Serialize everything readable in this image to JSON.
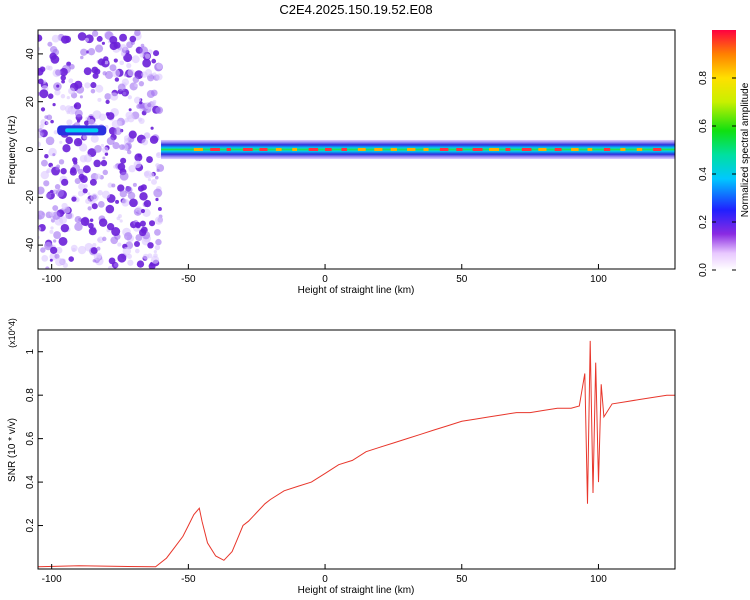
{
  "title": "C2E4.2025.150.19.52.E08",
  "colors": {
    "snr_line": "#e8362b",
    "scatter_purple": "#7b2fe0"
  },
  "chart_data": [
    {
      "type": "heatmap",
      "title": "C2E4.2025.150.19.52.E08",
      "xlabel": "Height of straight line (km)",
      "ylabel": "Frequency (Hz)",
      "xlim": [
        -105,
        128
      ],
      "ylim": [
        -50,
        50
      ],
      "xticks": [
        -100,
        -50,
        0,
        50,
        100
      ],
      "yticks": [
        -40,
        -20,
        0,
        20,
        40
      ],
      "colorbar": {
        "label": "Normalized spectral amplitude",
        "ticks": [
          "0.0",
          "0.2",
          "0.4",
          "0.6",
          "0.8"
        ],
        "range": [
          0,
          1
        ]
      },
      "features": {
        "noise_region_x": [
          -105,
          -60
        ],
        "band_start_x": -60,
        "band_center_hz": 0,
        "band_halfwidth_hz": 4,
        "early_blob": {
          "x": [
            -98,
            -80
          ],
          "hz": 8
        }
      }
    },
    {
      "type": "line",
      "xlabel": "Height of straight line (km)",
      "ylabel": "SNR (10 * v/v)",
      "y_multiplier": "(x10^4)",
      "xlim": [
        -105,
        128
      ],
      "ylim": [
        0,
        1.1
      ],
      "xticks": [
        -100,
        -50,
        0,
        50,
        100
      ],
      "yticks": [
        0.2,
        0.4,
        0.6,
        0.8,
        1.0
      ],
      "series": [
        {
          "color": "#e8362b",
          "x": [
            -105,
            -90,
            -75,
            -62,
            -58,
            -55,
            -52,
            -50,
            -48,
            -46,
            -45,
            -43,
            -40,
            -37,
            -34,
            -32,
            -30,
            -28,
            -25,
            -22,
            -20,
            -15,
            -10,
            -5,
            0,
            5,
            10,
            15,
            20,
            25,
            30,
            35,
            40,
            45,
            50,
            55,
            60,
            65,
            70,
            75,
            80,
            85,
            90,
            93,
            95,
            96,
            97,
            98,
            99,
            100,
            101,
            102,
            105,
            110,
            115,
            120,
            125,
            128
          ],
          "y": [
            0.01,
            0.015,
            0.012,
            0.01,
            0.05,
            0.1,
            0.15,
            0.2,
            0.25,
            0.28,
            0.22,
            0.12,
            0.06,
            0.04,
            0.08,
            0.14,
            0.2,
            0.22,
            0.26,
            0.3,
            0.32,
            0.36,
            0.38,
            0.4,
            0.44,
            0.48,
            0.5,
            0.54,
            0.56,
            0.58,
            0.6,
            0.62,
            0.64,
            0.66,
            0.68,
            0.69,
            0.7,
            0.71,
            0.72,
            0.72,
            0.73,
            0.74,
            0.74,
            0.75,
            0.9,
            0.3,
            1.05,
            0.35,
            0.95,
            0.4,
            0.85,
            0.7,
            0.76,
            0.77,
            0.78,
            0.79,
            0.8,
            0.8
          ]
        }
      ]
    }
  ]
}
